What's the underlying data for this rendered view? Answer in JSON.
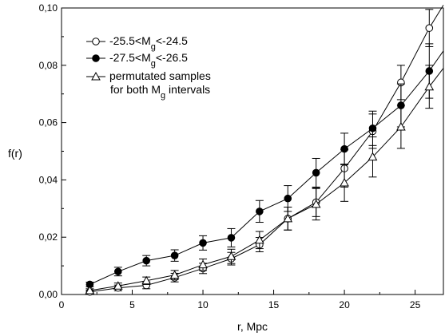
{
  "chart_data": {
    "type": "line",
    "xlabel": "r, Mpc",
    "ylabel": "f(r)",
    "xlim": [
      0,
      27
    ],
    "ylim": [
      0,
      0.1
    ],
    "x_ticks": [
      "0",
      "5",
      "10",
      "15",
      "20",
      "25"
    ],
    "y_ticks": [
      "0,00",
      "0,02",
      "0,04",
      "0,06",
      "0,08",
      "0,10"
    ],
    "grid": false,
    "legend_position": "top-left",
    "series": [
      {
        "name": "-25.5<Mg<-24.5",
        "legend": {
          "pre": "-25.5<M",
          "sub": "g",
          "post": "<-24.5"
        },
        "marker": "open-circle",
        "x": [
          2,
          4,
          6,
          8,
          10,
          12,
          14,
          16,
          18,
          20,
          22,
          24,
          26
        ],
        "y": [
          0.0009,
          0.0023,
          0.0032,
          0.0059,
          0.0091,
          0.0125,
          0.0174,
          0.0265,
          0.0322,
          0.044,
          0.057,
          0.074,
          0.093
        ],
        "err": [
          0.0006,
          0.001,
          0.0012,
          0.0015,
          0.0018,
          0.0022,
          0.0025,
          0.004,
          0.005,
          0.0065,
          0.006,
          0.006,
          0.0065
        ],
        "tail": [
          27,
          0.101
        ]
      },
      {
        "name": "-27.5<Mg<-26.5",
        "legend": {
          "pre": "-27.5<M",
          "sub": "g",
          "post": "<-26.5"
        },
        "marker": "filled-circle",
        "x": [
          2,
          4,
          6,
          8,
          10,
          12,
          14,
          16,
          18,
          20,
          22,
          24,
          26
        ],
        "y": [
          0.0035,
          0.008,
          0.0118,
          0.0136,
          0.018,
          0.0198,
          0.029,
          0.0335,
          0.0425,
          0.0508,
          0.058,
          0.066,
          0.078
        ],
        "err": [
          0.0008,
          0.0015,
          0.0018,
          0.002,
          0.0025,
          0.0032,
          0.0038,
          0.0045,
          0.005,
          0.0055,
          0.006,
          0.0075,
          0.0095
        ],
        "tail": [
          27,
          0.085
        ]
      },
      {
        "name": "permutated samples for both Mg intervals",
        "legend": {
          "line1": "permutated samples",
          "line2_pre": "for both M",
          "line2_sub": "g",
          "line2_post": " intervals"
        },
        "marker": "open-triangle",
        "x": [
          2,
          4,
          6,
          8,
          10,
          12,
          14,
          16,
          18,
          20,
          22,
          24,
          26
        ],
        "y": [
          0.0014,
          0.003,
          0.0048,
          0.0068,
          0.0104,
          0.0133,
          0.019,
          0.0265,
          0.0315,
          0.039,
          0.048,
          0.0585,
          0.0725
        ],
        "err": [
          0.0006,
          0.001,
          0.0013,
          0.0016,
          0.002,
          0.0025,
          0.003,
          0.004,
          0.0055,
          0.0065,
          0.007,
          0.0075,
          0.0075
        ],
        "tail": [
          27,
          0.079
        ]
      }
    ]
  }
}
